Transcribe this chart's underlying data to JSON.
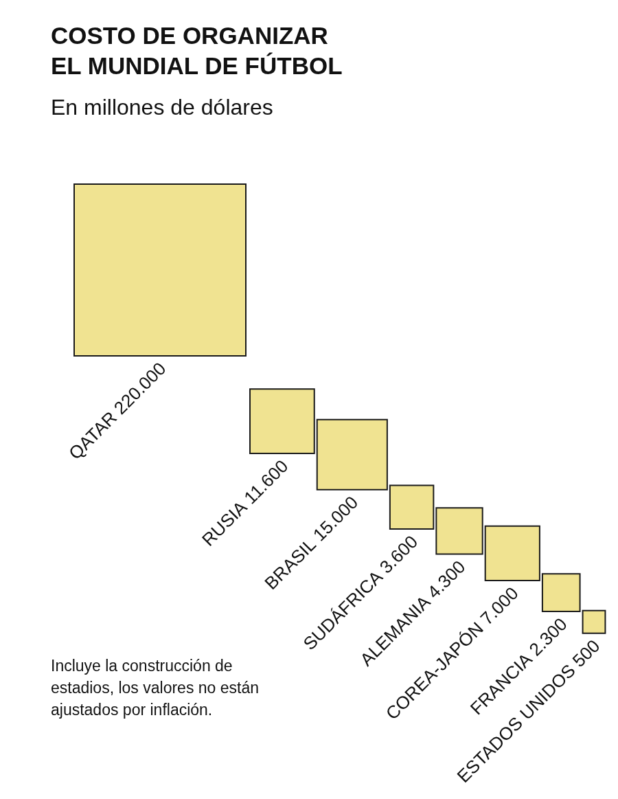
{
  "chart_data": {
    "type": "other",
    "title": "COSTO DE ORGANIZAR EL MUNDIAL DE FÚTBOL",
    "subtitle": "En millones de dólares",
    "categories": [
      "QATAR",
      "RUSIA",
      "BRASIL",
      "SUDÁFRICA",
      "ALEMANIA",
      "COREA-JAPÓN",
      "FRANCIA",
      "ESTADOS UNIDOS"
    ],
    "values": [
      220000,
      11600,
      15000,
      3600,
      4300,
      7000,
      2300,
      500
    ],
    "value_labels": [
      "220.000",
      "11.600",
      "15.000",
      "3.600",
      "4.300",
      "7.000",
      "2.300",
      "500"
    ],
    "color": "#f0e391",
    "annotations": [
      "Incluye la construcción de estadios, los valores no están ajustados por inflación."
    ]
  }
}
